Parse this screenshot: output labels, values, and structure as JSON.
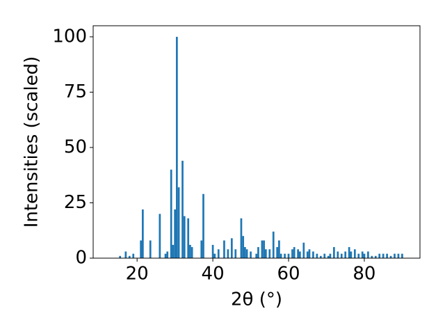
{
  "chart_data": {
    "type": "bar",
    "xlabel": "2θ (°)",
    "ylabel": "Intensities (scaled)",
    "color": "#1f77b4",
    "x": [
      15.5,
      17,
      18,
      19,
      21,
      21.5,
      23.5,
      26,
      27.5,
      28,
      29,
      29.5,
      30,
      30.5,
      31,
      32,
      32.5,
      33.5,
      34,
      34.5,
      37,
      37.5,
      40,
      40.5,
      41.5,
      43,
      44,
      45,
      46,
      47.5,
      48,
      48.5,
      49,
      50,
      51.5,
      52,
      53,
      53.5,
      54,
      55,
      56,
      57,
      57.5,
      58,
      59,
      60,
      61,
      61.5,
      62.5,
      63,
      64,
      65,
      65.5,
      66.5,
      67.5,
      68.5,
      69.5,
      70.5,
      71,
      72,
      73,
      74,
      75,
      76,
      76.5,
      77.5,
      78.5,
      79.5,
      80,
      81,
      82,
      83,
      84,
      85,
      86,
      87,
      88,
      89,
      90
    ],
    "values": [
      1,
      3,
      1,
      2,
      8,
      22,
      8,
      20,
      2,
      3,
      40,
      6,
      22,
      100,
      32,
      44,
      19,
      18,
      6,
      5,
      8,
      29,
      6,
      2,
      4,
      8,
      4,
      9,
      4,
      18,
      10,
      5,
      4,
      3,
      2,
      5,
      8,
      8,
      4,
      4,
      12,
      5,
      8,
      2,
      2,
      2,
      4,
      5,
      4,
      3,
      7,
      3,
      4,
      3,
      2,
      1,
      2,
      1,
      2,
      5,
      3,
      2,
      3,
      5,
      3,
      4,
      2,
      3,
      2,
      3,
      1,
      1,
      2,
      2,
      2,
      1,
      2,
      2,
      2
    ],
    "xlim": [
      8.4,
      94.7
    ],
    "ylim": [
      0,
      105
    ],
    "xticks": [
      20,
      40,
      60,
      80
    ],
    "yticks": [
      0,
      25,
      50,
      75,
      100
    ]
  }
}
